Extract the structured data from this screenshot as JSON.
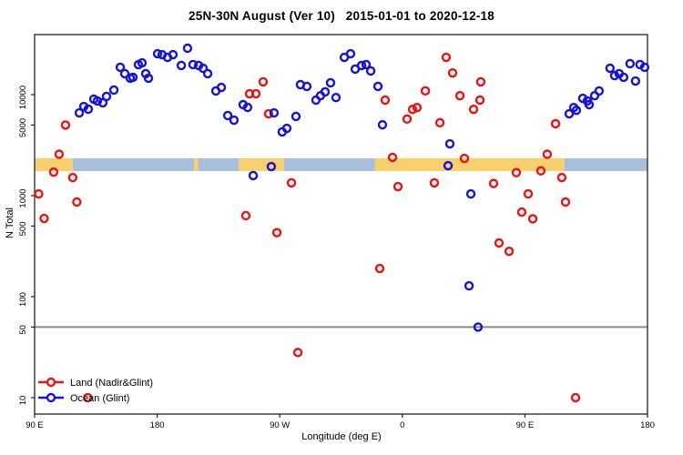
{
  "title": "25N-30N August (Ver 10)   2015-01-01 to 2020-12-18",
  "chart_data": {
    "type": "scatter",
    "title": "25N-30N August (Ver 10)   2015-01-01 to 2020-12-18",
    "xlabel": "Longitude (deg E)",
    "ylabel": "N Total",
    "x_axis": {
      "range": [
        90,
        540
      ],
      "ticks": [
        {
          "pos": 90,
          "label": "90 E"
        },
        {
          "pos": 180,
          "label": "180"
        },
        {
          "pos": 270,
          "label": "90 W"
        },
        {
          "pos": 360,
          "label": "0"
        },
        {
          "pos": 450,
          "label": "90 E"
        },
        {
          "pos": 540,
          "label": "180"
        }
      ]
    },
    "y_axis": {
      "scale": "log",
      "range": [
        7,
        39000
      ],
      "ticks": [
        {
          "value": 10,
          "label": "10"
        },
        {
          "value": 50,
          "label": "50"
        },
        {
          "value": 100,
          "label": "100"
        },
        {
          "value": 500,
          "label": "500"
        },
        {
          "value": 1000,
          "label": "1000"
        },
        {
          "value": 5000,
          "label": "5000"
        },
        {
          "value": 10000,
          "label": "10000"
        }
      ]
    },
    "reference_line": {
      "value": 50,
      "color": "#8a8a8a"
    },
    "surface_band": {
      "value_range": [
        1750,
        2350
      ],
      "land_color": "#f9d06e",
      "ocean_color": "#a9bfdc",
      "segments": [
        {
          "surface": "land",
          "from": 90,
          "to": 118
        },
        {
          "surface": "ocean",
          "from": 118,
          "to": 207
        },
        {
          "surface": "land",
          "from": 207,
          "to": 210
        },
        {
          "surface": "ocean",
          "from": 210,
          "to": 240
        },
        {
          "surface": "land",
          "from": 240,
          "to": 273
        },
        {
          "surface": "ocean",
          "from": 273,
          "to": 340
        },
        {
          "surface": "land",
          "from": 340,
          "to": 479
        },
        {
          "surface": "ocean",
          "from": 479,
          "to": 540
        }
      ]
    },
    "legend": {
      "position": "bottom-left"
    },
    "series": [
      {
        "name": "Land (Nadir&Glint)",
        "color": "#ee1111",
        "points": [
          [
            112.7,
            5000
          ],
          [
            108,
            2570
          ],
          [
            104,
            1710
          ],
          [
            118,
            1510
          ],
          [
            93,
            1040
          ],
          [
            121,
            865
          ],
          [
            97,
            595
          ],
          [
            129,
            10
          ],
          [
            257.8,
            13400
          ],
          [
            247.8,
            10200
          ],
          [
            252.5,
            10200
          ],
          [
            261.8,
            6460
          ],
          [
            278.6,
            1340
          ],
          [
            245.1,
            634
          ],
          [
            267.9,
            430
          ],
          [
            283.3,
            28
          ],
          [
            347.4,
            8830
          ],
          [
            352.8,
            2390
          ],
          [
            356.8,
            1230
          ],
          [
            343.4,
            190
          ],
          [
            376.9,
            10900
          ],
          [
            367.5,
            7150
          ],
          [
            370.8,
            7450
          ],
          [
            363.5,
            5730
          ],
          [
            387.6,
            5270
          ],
          [
            383.5,
            1340
          ],
          [
            392.2,
            23400
          ],
          [
            396.9,
            16400
          ],
          [
            402.3,
            9760
          ],
          [
            417.6,
            13400
          ],
          [
            417,
            8830
          ],
          [
            412.3,
            7150
          ],
          [
            405.6,
            2340
          ],
          [
            427,
            1320
          ],
          [
            466.4,
            2570
          ],
          [
            443.7,
            1690
          ],
          [
            461.7,
            1760
          ],
          [
            477.1,
            1510
          ],
          [
            452.4,
            1040
          ],
          [
            479.8,
            865
          ],
          [
            447.7,
            687
          ],
          [
            455.8,
            590
          ],
          [
            431,
            340
          ],
          [
            438.4,
            281
          ],
          [
            472.5,
            5150
          ],
          [
            487.2,
            10
          ]
        ]
      },
      {
        "name": "Ocean (Glint)",
        "color": "#1313dd",
        "points": [
          [
            122.8,
            6600
          ],
          [
            126.1,
            7630
          ],
          [
            129.4,
            7180
          ],
          [
            133.5,
            9020
          ],
          [
            136.1,
            8660
          ],
          [
            140.1,
            8310
          ],
          [
            142.8,
            9600
          ],
          [
            148.2,
            11100
          ],
          [
            152.9,
            18650
          ],
          [
            156.2,
            16130
          ],
          [
            160.2,
            14550
          ],
          [
            162.2,
            14850
          ],
          [
            166.2,
            19800
          ],
          [
            168.9,
            20640
          ],
          [
            171.6,
            16130
          ],
          [
            173.6,
            14550
          ],
          [
            180.3,
            25400
          ],
          [
            183.6,
            24870
          ],
          [
            187.6,
            23390
          ],
          [
            191.6,
            24870
          ],
          [
            202.3,
            28800
          ],
          [
            197.7,
            19430
          ],
          [
            206.3,
            19840
          ],
          [
            210.4,
            19430
          ],
          [
            213.7,
            18250
          ],
          [
            217.1,
            16130
          ],
          [
            223.1,
            10870
          ],
          [
            227.1,
            11790
          ],
          [
            231.8,
            6210
          ],
          [
            236.4,
            5590
          ],
          [
            243.1,
            7960
          ],
          [
            246.4,
            7480
          ],
          [
            265.8,
            6600
          ],
          [
            271.8,
            4280
          ],
          [
            275.2,
            4640
          ],
          [
            281.9,
            6080
          ],
          [
            285.2,
            12560
          ],
          [
            289.9,
            12060
          ],
          [
            296.6,
            8830
          ],
          [
            299.9,
            9760
          ],
          [
            303.3,
            10650
          ],
          [
            307.3,
            13100
          ],
          [
            311.3,
            9360
          ],
          [
            263.8,
            1940
          ],
          [
            250.5,
            1580
          ],
          [
            317.4,
            23390
          ],
          [
            322,
            25400
          ],
          [
            325.4,
            17900
          ],
          [
            330.1,
            19430
          ],
          [
            333.4,
            19840
          ],
          [
            336.8,
            17160
          ],
          [
            342.1,
            12060
          ],
          [
            345.4,
            5030
          ],
          [
            393.6,
            1980
          ],
          [
            394.9,
            3260
          ],
          [
            410.3,
            1040
          ],
          [
            409,
            128
          ],
          [
            415.6,
            50
          ],
          [
            482.5,
            6460
          ],
          [
            485.8,
            7450
          ],
          [
            487.8,
            7000
          ],
          [
            492.5,
            9200
          ],
          [
            495.8,
            8660
          ],
          [
            497.2,
            7960
          ],
          [
            501.2,
            9760
          ],
          [
            504.5,
            10870
          ],
          [
            512.5,
            18250
          ],
          [
            515.9,
            15430
          ],
          [
            519.2,
            16130
          ],
          [
            522.5,
            14850
          ],
          [
            527.2,
            20250
          ],
          [
            531.2,
            13640
          ],
          [
            534.5,
            19840
          ],
          [
            537.9,
            18650
          ]
        ]
      }
    ]
  }
}
